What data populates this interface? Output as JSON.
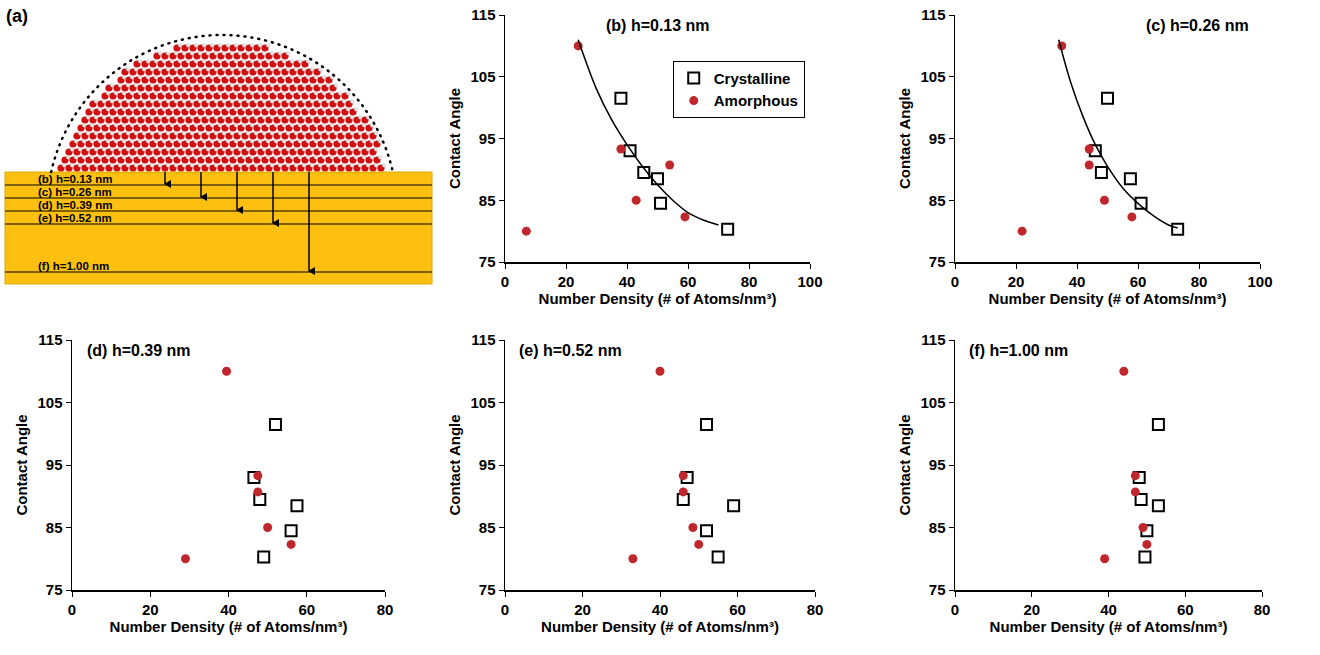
{
  "panel_a": {
    "label": "(a)",
    "depths": [
      {
        "label": "(b) h=0.13 nm",
        "h": 0.13
      },
      {
        "label": "(c) h=0.26 nm",
        "h": 0.26
      },
      {
        "label": "(d) h=0.39 nm",
        "h": 0.39
      },
      {
        "label": "(e) h=0.52 nm",
        "h": 0.52
      },
      {
        "label": "(f) h=1.00 nm",
        "h": 1.0
      }
    ]
  },
  "chart_data": [
    {
      "type": "scatter",
      "title": "(b) h=0.13 nm",
      "x_label": "Number Density (# of Atoms/nm³)",
      "y_label": "Contact Angle",
      "xlim": [
        0,
        100
      ],
      "xticks": [
        0,
        20,
        40,
        60,
        80,
        100
      ],
      "ylim": [
        75,
        115
      ],
      "yticks": [
        75,
        85,
        95,
        105,
        115
      ],
      "grid": false,
      "legend": "upper right",
      "series": [
        {
          "name": "Crystalline",
          "color": "#000000",
          "marker": "square-open",
          "x": [
            38,
            41,
            45.5,
            50,
            51,
            73
          ],
          "values": [
            101.5,
            93,
            89.5,
            88.5,
            84.5,
            80.3
          ]
        },
        {
          "name": "Amorphous",
          "color": "#c0272d",
          "marker": "circle",
          "x": [
            7,
            24,
            38,
            43,
            54,
            59
          ],
          "values": [
            80,
            110,
            93.3,
            85,
            90.7,
            82.3
          ]
        },
        {
          "type": "line",
          "color": "#000000",
          "line_style": "solid",
          "x": [
            24,
            30,
            35,
            40,
            45,
            50,
            55,
            60,
            65,
            70
          ],
          "values": [
            111,
            103,
            98,
            94,
            90.5,
            87.5,
            85,
            83,
            81.8,
            81
          ]
        }
      ]
    },
    {
      "type": "scatter",
      "title": "(c) h=0.26 nm",
      "x_label": "Number Density (# of Atoms/nm³)",
      "y_label": "Contact Angle",
      "xlim": [
        0,
        100
      ],
      "xticks": [
        0,
        20,
        40,
        60,
        80,
        100
      ],
      "ylim": [
        75,
        115
      ],
      "yticks": [
        75,
        85,
        95,
        105,
        115
      ],
      "grid": false,
      "series": [
        {
          "name": "Crystalline",
          "color": "#000000",
          "marker": "square-open",
          "x": [
            50,
            46,
            48,
            57.5,
            61,
            73
          ],
          "values": [
            101.5,
            93,
            89.5,
            88.5,
            84.5,
            80.3
          ]
        },
        {
          "name": "Amorphous",
          "color": "#c0272d",
          "marker": "circle",
          "x": [
            22,
            35,
            44,
            44,
            49,
            58
          ],
          "values": [
            80,
            110,
            93.3,
            90.7,
            85,
            82.3
          ]
        },
        {
          "type": "line",
          "color": "#000000",
          "line_style": "solid",
          "x": [
            34,
            38,
            42,
            46,
            50,
            55,
            60,
            65,
            70,
            73
          ],
          "values": [
            111,
            104,
            98.5,
            94,
            90.5,
            87,
            84.5,
            82.5,
            81,
            80.5
          ]
        }
      ]
    },
    {
      "type": "scatter",
      "title": "(d) h=0.39 nm",
      "x_label": "Number Density (# of Atoms/nm³)",
      "y_label": "Contact Angle",
      "xlim": [
        0,
        80
      ],
      "xticks": [
        0,
        20,
        40,
        60,
        80
      ],
      "ylim": [
        75,
        115
      ],
      "yticks": [
        75,
        85,
        95,
        105,
        115
      ],
      "grid": false,
      "series": [
        {
          "name": "Crystalline",
          "color": "#000000",
          "marker": "square-open",
          "x": [
            52,
            46.5,
            48,
            57.5,
            56,
            49
          ],
          "values": [
            101.5,
            93,
            89.5,
            88.5,
            84.5,
            80.3
          ]
        },
        {
          "name": "Amorphous",
          "color": "#c0272d",
          "marker": "circle",
          "x": [
            29,
            39.5,
            47.5,
            47.5,
            50,
            56
          ],
          "values": [
            80,
            110,
            93.3,
            90.7,
            85,
            82.3
          ]
        }
      ]
    },
    {
      "type": "scatter",
      "title": "(e) h=0.52 nm",
      "x_label": "Number Density (# of Atoms/nm³)",
      "y_label": "Contact Angle",
      "xlim": [
        0,
        80
      ],
      "xticks": [
        0,
        20,
        40,
        60,
        80
      ],
      "ylim": [
        75,
        115
      ],
      "yticks": [
        75,
        85,
        95,
        105,
        115
      ],
      "grid": false,
      "series": [
        {
          "name": "Crystalline",
          "color": "#000000",
          "marker": "square-open",
          "x": [
            52,
            47,
            46,
            59,
            52,
            55
          ],
          "values": [
            101.5,
            93,
            89.5,
            88.5,
            84.5,
            80.3
          ]
        },
        {
          "name": "Amorphous",
          "color": "#c0272d",
          "marker": "circle",
          "x": [
            33,
            40,
            46,
            46,
            48.5,
            50
          ],
          "values": [
            80,
            110,
            93.3,
            90.7,
            85,
            82.3
          ]
        }
      ]
    },
    {
      "type": "scatter",
      "title": "(f) h=1.00 nm",
      "x_label": "Number Density (# of Atoms/nm³)",
      "y_label": "Contact Angle",
      "xlim": [
        0,
        80
      ],
      "xticks": [
        0,
        20,
        40,
        60,
        80
      ],
      "ylim": [
        75,
        115
      ],
      "yticks": [
        75,
        85,
        95,
        105,
        115
      ],
      "grid": false,
      "series": [
        {
          "name": "Crystalline",
          "color": "#000000",
          "marker": "square-open",
          "x": [
            53,
            48,
            48.5,
            53,
            50,
            49.5
          ],
          "values": [
            101.5,
            93,
            89.5,
            88.5,
            84.5,
            80.3
          ]
        },
        {
          "name": "Amorphous",
          "color": "#c0272d",
          "marker": "circle",
          "x": [
            39,
            44,
            47,
            47,
            49,
            50
          ],
          "values": [
            80,
            110,
            93.3,
            90.7,
            85,
            82.3
          ]
        }
      ]
    }
  ]
}
